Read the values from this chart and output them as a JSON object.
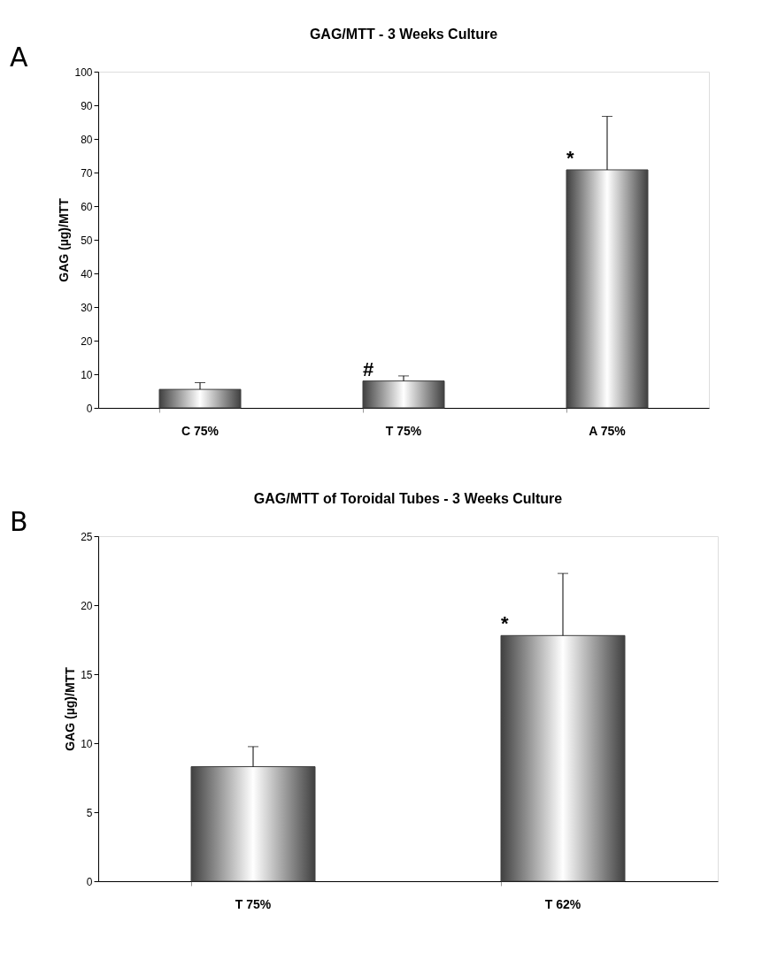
{
  "chart_data": [
    {
      "type": "bar",
      "title": "GAG/MTT - 3 Weeks Culture",
      "ylabel": "GAG (µg)/MTT",
      "categories": [
        "C 75%",
        "T 75%",
        "A 75%"
      ],
      "values": [
        5.5,
        8.0,
        70.8
      ],
      "errors": [
        [
          5.5,
          7.5
        ],
        [
          8.0,
          9.5
        ],
        [
          70.8,
          86.7
        ]
      ],
      "color": "#404040",
      "ylim": [
        0,
        100
      ],
      "yticks": [
        0,
        10,
        20,
        30,
        40,
        50,
        60,
        70,
        80,
        90,
        100
      ],
      "grid": false,
      "annotations": [
        "A",
        {
          "text": "*",
          "x": "A 75%",
          "y": 70.8
        },
        {
          "text": "#",
          "x": "T 75%",
          "y": 8.0
        }
      ]
    },
    {
      "type": "bar",
      "title": "GAG/MTT of Toroidal Tubes - 3 Weeks Culture",
      "ylabel": "GAG (µg)/MTT",
      "categories": [
        "T 75%",
        "T 62%"
      ],
      "values": [
        8.3,
        17.8
      ],
      "errors": [
        [
          8.3,
          9.75
        ],
        [
          17.8,
          22.3
        ]
      ],
      "color": "#404040",
      "ylim": [
        0,
        25
      ],
      "yticks": [
        0,
        5,
        10,
        15,
        20,
        25
      ],
      "grid": false,
      "annotations": [
        "B",
        {
          "text": "*",
          "x": "T 62%",
          "y": 17.8
        }
      ]
    }
  ]
}
